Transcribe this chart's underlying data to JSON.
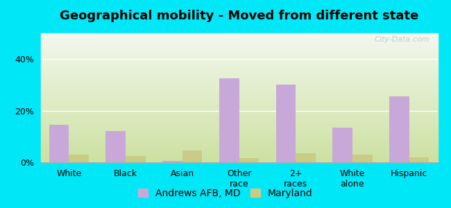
{
  "title": "Geographical mobility - Moved from different state",
  "categories": [
    "White",
    "Black",
    "Asian",
    "Other\nrace",
    "2+\nraces",
    "White\nalone",
    "Hispanic"
  ],
  "andrews_values": [
    14.5,
    12.0,
    0.5,
    32.5,
    30.0,
    13.5,
    25.5
  ],
  "maryland_values": [
    3.0,
    2.5,
    4.5,
    1.5,
    3.5,
    3.0,
    2.0
  ],
  "andrews_color": "#c8a8d8",
  "maryland_color": "#c8cc84",
  "background_outer": "#00e8f8",
  "ylim": [
    0,
    50
  ],
  "yticks": [
    0,
    20,
    40
  ],
  "ytick_labels": [
    "0%",
    "20%",
    "40%"
  ],
  "bar_width": 0.35,
  "title_fontsize": 13,
  "tick_fontsize": 9,
  "legend_fontsize": 10,
  "watermark": "City-Data.com"
}
